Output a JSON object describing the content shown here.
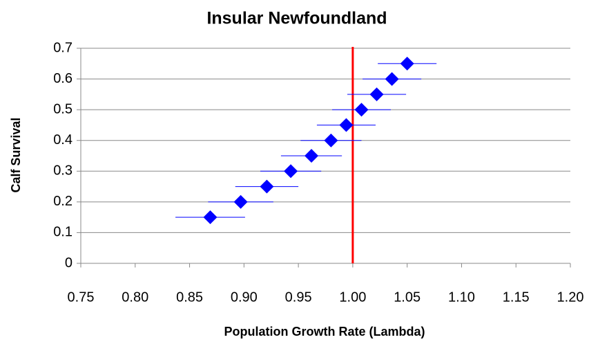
{
  "chart_data": {
    "type": "scatter",
    "title": "Insular Newfoundland",
    "x_label": "Population Growth Rate (Lambda)",
    "y_label": "Calf Survival",
    "marker": "diamond",
    "series": [
      {
        "color": "#0000ff",
        "x": [
          0.869,
          0.897,
          0.921,
          0.943,
          0.962,
          0.98,
          0.994,
          1.008,
          1.022,
          1.036,
          1.05
        ],
        "values": [
          0.15,
          0.2,
          0.25,
          0.3,
          0.35,
          0.4,
          0.45,
          0.5,
          0.55,
          0.6,
          0.65
        ],
        "x_err": [
          0.032,
          0.03,
          0.029,
          0.028,
          0.028,
          0.028,
          0.027,
          0.027,
          0.027,
          0.027,
          0.027
        ]
      }
    ],
    "reference_line": {
      "x": 1.0,
      "color": "#ff0000"
    },
    "xlim": [
      0.75,
      1.2
    ],
    "xticks": [
      0.75,
      {
        "value": 0.8,
        "label": "0.80"
      },
      0.85,
      {
        "value": 0.9,
        "label": "0.90"
      },
      0.95,
      {
        "value": 1.0,
        "label": "1.00"
      },
      1.05,
      {
        "value": 1.1,
        "label": "1.10"
      },
      1.15,
      {
        "value": 1.2,
        "label": "1.20"
      }
    ],
    "ylim": [
      0,
      0.7
    ],
    "yticks": [
      0,
      0.1,
      0.2,
      0.3,
      0.4,
      0.5,
      0.6,
      0.7
    ],
    "grid": true
  }
}
